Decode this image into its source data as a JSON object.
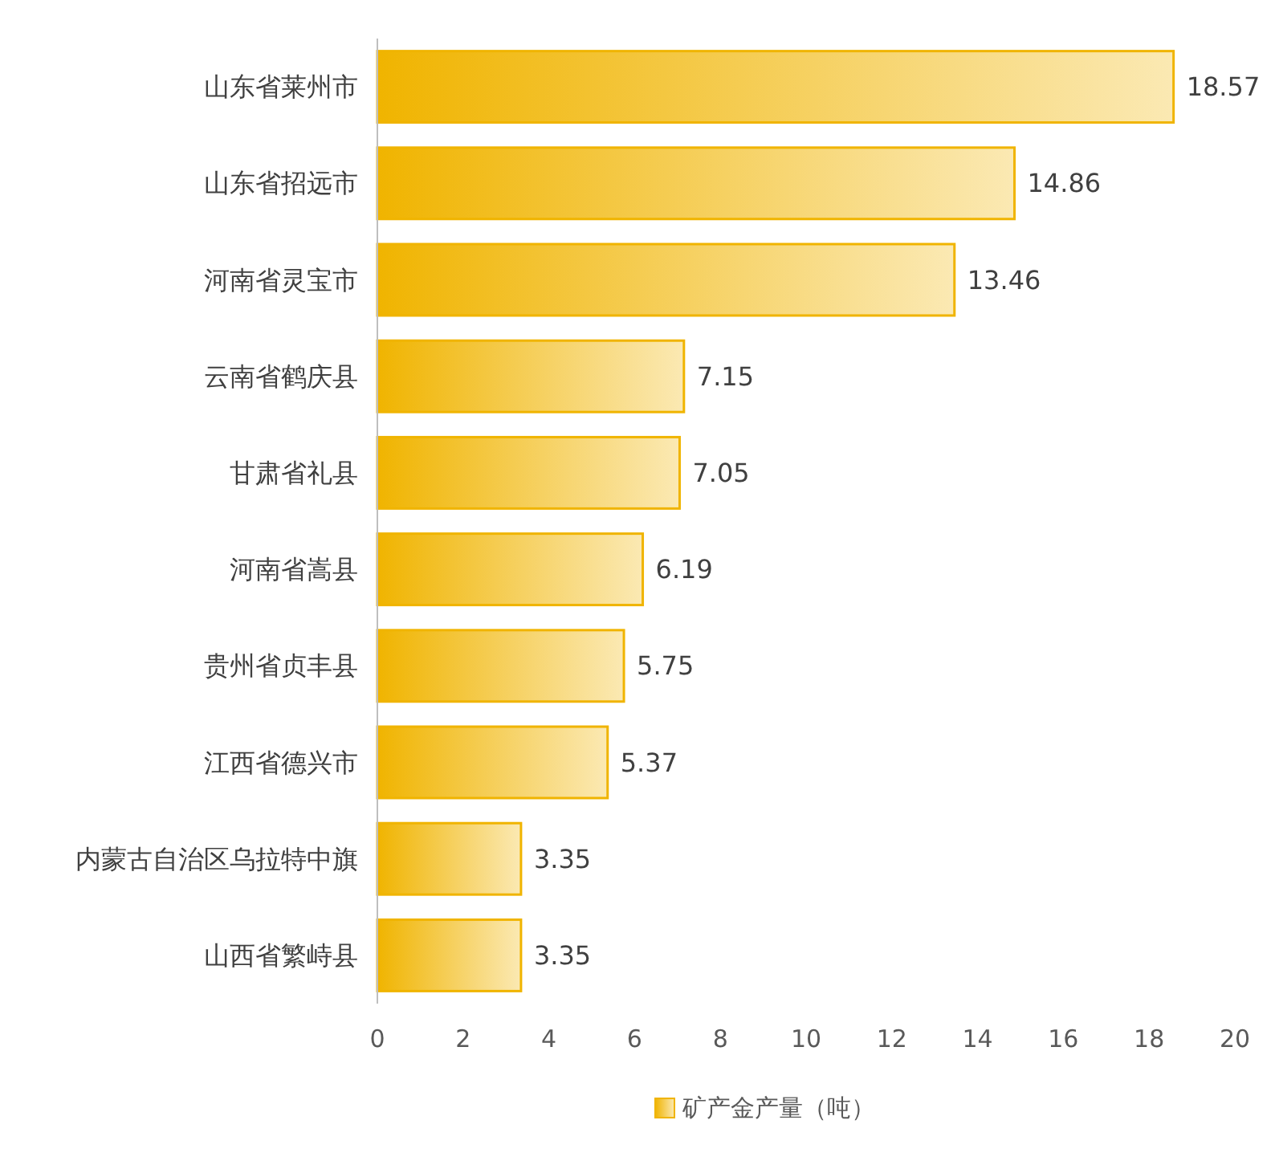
{
  "chart_data": {
    "type": "bar",
    "orientation": "horizontal",
    "categories": [
      "山东省莱州市",
      "山东省招远市",
      "河南省灵宝市",
      "云南省鹤庆县",
      "甘肃省礼县",
      "河南省嵩县",
      "贵州省贞丰县",
      "江西省德兴市",
      "内蒙古自治区乌拉特中旗",
      "山西省繁峙县"
    ],
    "series": [
      {
        "name": "矿产金产量（吨）",
        "color": "#f0b400",
        "values": [
          18.57,
          14.86,
          13.46,
          7.15,
          7.05,
          6.19,
          5.75,
          5.37,
          3.35,
          3.35
        ]
      }
    ],
    "xlim": [
      0,
      20
    ],
    "xticks": [
      0,
      2,
      4,
      6,
      8,
      10,
      12,
      14,
      16,
      18,
      20
    ],
    "data_labels": true,
    "legend": "bottom",
    "grid": false
  }
}
